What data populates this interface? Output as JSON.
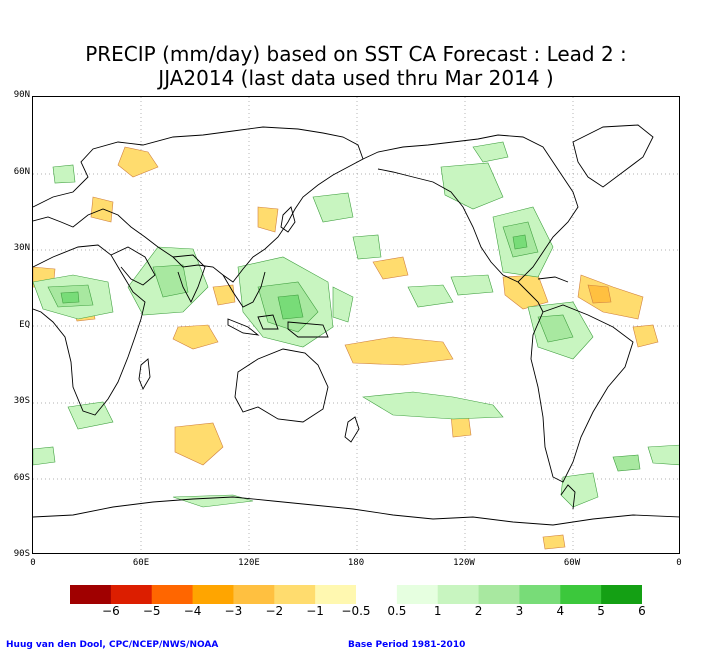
{
  "title": {
    "line1": "PRECIP (mm/day) based on SST CA Forecast : Lead 2 :",
    "line2": "JJA2014 (last data used thru Mar 2014 )"
  },
  "axes": {
    "lat_labels": [
      "90N",
      "60N",
      "30N",
      "EQ",
      "30S",
      "60S",
      "90S"
    ],
    "lon_labels": [
      "0",
      "60E",
      "120E",
      "180",
      "120W",
      "60W",
      "0"
    ]
  },
  "legend": {
    "labels": [
      "−6",
      "−5",
      "−4",
      "−3",
      "−2",
      "−1",
      "−0.5",
      "0.5",
      "1",
      "2",
      "3",
      "4",
      "5",
      "6"
    ],
    "colors": [
      "#a00000",
      "#dc1e00",
      "#ff6600",
      "#ffa500",
      "#ffc040",
      "#ffdc6e",
      "#fff8b0",
      "#ffffff",
      "#e6ffe0",
      "#c8f5c0",
      "#a8e8a0",
      "#78dc78",
      "#3cc83c",
      "#14a014"
    ]
  },
  "credits": {
    "left": "Huug van den Dool, CPC/NCEP/NWS/NOAA",
    "right": "Base Period 1981-2010"
  }
}
